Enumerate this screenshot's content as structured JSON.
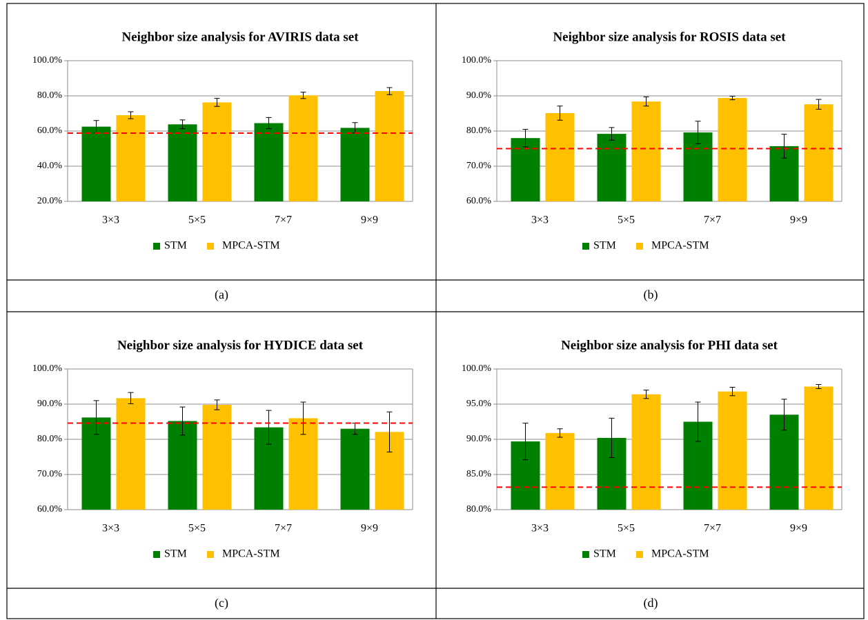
{
  "chart_data": [
    {
      "type": "bar",
      "title": "Neighbor size analysis for AVIRIS data set",
      "caption": "(a)",
      "categories": [
        "3×3",
        "5×5",
        "7×7",
        "9×9"
      ],
      "series": [
        {
          "name": "STM",
          "color": "#008000",
          "values": [
            62.5,
            63.8,
            64.5,
            61.8
          ],
          "errors": [
            3.5,
            2.5,
            3.2,
            3.0
          ]
        },
        {
          "name": "MPCA-STM",
          "color": "#ffc000",
          "values": [
            69.0,
            76.3,
            80.3,
            82.7
          ],
          "errors": [
            2.0,
            2.3,
            1.8,
            2.0
          ]
        }
      ],
      "ylim": [
        20,
        100
      ],
      "yticks": [
        {
          "value": 20,
          "label": "20.0%"
        },
        {
          "value": 40,
          "label": "40.0%"
        },
        {
          "value": 60,
          "label": "60.0%"
        },
        {
          "value": 80,
          "label": "80.0%"
        },
        {
          "value": 100,
          "label": "100.0%"
        }
      ],
      "reference_line": 58.8,
      "reference_color": "#ff0000",
      "grid": true,
      "legend": "bottom"
    },
    {
      "type": "bar",
      "title": "Neighbor size analysis for ROSIS data set",
      "caption": "(b)",
      "categories": [
        "3×3",
        "5×5",
        "7×7",
        "9×9"
      ],
      "series": [
        {
          "name": "STM",
          "color": "#008000",
          "values": [
            78.0,
            79.2,
            79.6,
            75.7
          ],
          "errors": [
            2.5,
            1.8,
            3.2,
            3.4
          ]
        },
        {
          "name": "MPCA-STM",
          "color": "#ffc000",
          "values": [
            85.1,
            88.4,
            89.4,
            87.6
          ],
          "errors": [
            2.0,
            1.3,
            0.5,
            1.4
          ]
        }
      ],
      "ylim": [
        60,
        100
      ],
      "yticks": [
        {
          "value": 60,
          "label": "60.0%"
        },
        {
          "value": 70,
          "label": "70.0%"
        },
        {
          "value": 80,
          "label": "80.0%"
        },
        {
          "value": 90,
          "label": "90.0%"
        },
        {
          "value": 100,
          "label": "100.0%"
        }
      ],
      "reference_line": 75.0,
      "reference_color": "#ff0000",
      "grid": true,
      "legend": "bottom"
    },
    {
      "type": "bar",
      "title": "Neighbor size analysis for HYDICE data set",
      "caption": "(c)",
      "categories": [
        "3×3",
        "5×5",
        "7×7",
        "9×9"
      ],
      "series": [
        {
          "name": "STM",
          "color": "#008000",
          "values": [
            86.2,
            85.2,
            83.4,
            83.0
          ],
          "errors": [
            4.8,
            4.0,
            4.8,
            1.6
          ]
        },
        {
          "name": "MPCA-STM",
          "color": "#ffc000",
          "values": [
            91.7,
            89.8,
            86.0,
            82.1
          ],
          "errors": [
            1.6,
            1.4,
            4.6,
            5.7
          ]
        }
      ],
      "ylim": [
        60,
        100
      ],
      "yticks": [
        {
          "value": 60,
          "label": "60.0%"
        },
        {
          "value": 70,
          "label": "70.0%"
        },
        {
          "value": 80,
          "label": "80.0%"
        },
        {
          "value": 90,
          "label": "90.0%"
        },
        {
          "value": 100,
          "label": "100.0%"
        }
      ],
      "reference_line": 84.6,
      "reference_color": "#ff0000",
      "grid": true,
      "legend": "bottom"
    },
    {
      "type": "bar",
      "title": "Neighbor size analysis for PHI data set",
      "caption": "(d)",
      "categories": [
        "3×3",
        "5×5",
        "7×7",
        "9×9"
      ],
      "series": [
        {
          "name": "STM",
          "color": "#008000",
          "values": [
            89.7,
            90.2,
            92.5,
            93.5
          ],
          "errors": [
            2.6,
            2.8,
            2.8,
            2.2
          ]
        },
        {
          "name": "MPCA-STM",
          "color": "#ffc000",
          "values": [
            90.9,
            96.4,
            96.8,
            97.5
          ],
          "errors": [
            0.6,
            0.6,
            0.6,
            0.3
          ]
        }
      ],
      "ylim": [
        80,
        100
      ],
      "yticks": [
        {
          "value": 80,
          "label": "80.0%"
        },
        {
          "value": 85,
          "label": "85.0%"
        },
        {
          "value": 90,
          "label": "90.0%"
        },
        {
          "value": 95,
          "label": "95.0%"
        },
        {
          "value": 100,
          "label": "100.0%"
        }
      ],
      "reference_line": 83.2,
      "reference_color": "#ff0000",
      "grid": true,
      "legend": "bottom"
    }
  ]
}
